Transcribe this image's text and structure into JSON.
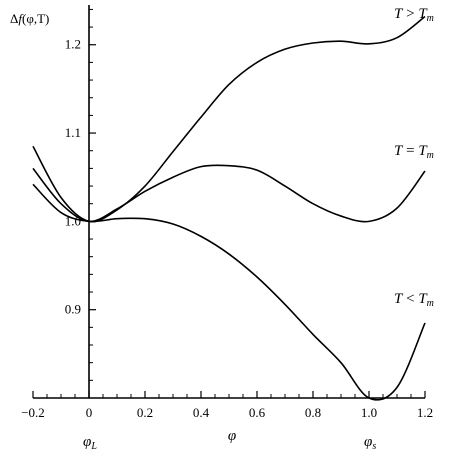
{
  "chart_data": {
    "type": "line",
    "ylabel_parts": {
      "delta": "Δ",
      "f": "f",
      "args": "(φ,T)"
    },
    "xlabel": "φ",
    "xlim": [
      -0.2,
      1.2
    ],
    "ylim": [
      0.8,
      1.245
    ],
    "x_ticks": [
      -0.2,
      0,
      0.2,
      0.4,
      0.6,
      0.8,
      1.0,
      1.2
    ],
    "x_tick_labels": [
      "−0.2",
      "0",
      "0.2",
      "0.4",
      "0.6",
      "0.8",
      "1.0",
      "1.2"
    ],
    "y_ticks": [
      0.9,
      1.0,
      1.1,
      1.2
    ],
    "y_tick_labels": [
      "0.9",
      "1.0",
      "1.1",
      "1.2"
    ],
    "special_labels": [
      {
        "x": 0,
        "base": "φ",
        "sub": "L"
      },
      {
        "x": 1.0,
        "base": "φ",
        "sub": "s"
      }
    ],
    "grid": false,
    "series": [
      {
        "label": {
          "lhs": "T",
          "op": ">",
          "rhs": "T",
          "sub": "m"
        },
        "x": [
          -0.2,
          -0.1,
          0,
          0.1,
          0.2,
          0.3,
          0.4,
          0.5,
          0.6,
          0.7,
          0.8,
          0.9,
          1.0,
          1.1,
          1.2
        ],
        "y": [
          1.085,
          1.027,
          1.0,
          1.013,
          1.04,
          1.079,
          1.118,
          1.155,
          1.18,
          1.195,
          1.202,
          1.204,
          1.201,
          1.208,
          1.232
        ]
      },
      {
        "label": {
          "lhs": "T",
          "op": "=",
          "rhs": "T",
          "sub": "m"
        },
        "x": [
          -0.2,
          -0.1,
          0,
          0.1,
          0.2,
          0.3,
          0.4,
          0.5,
          0.6,
          0.7,
          0.8,
          0.9,
          1.0,
          1.1,
          1.2
        ],
        "y": [
          1.06,
          1.02,
          1.0,
          1.014,
          1.034,
          1.05,
          1.062,
          1.063,
          1.058,
          1.04,
          1.02,
          1.006,
          1.0,
          1.015,
          1.057
        ]
      },
      {
        "label": {
          "lhs": "T",
          "op": "<",
          "rhs": "T",
          "sub": "m"
        },
        "x": [
          -0.2,
          -0.1,
          0,
          0.1,
          0.2,
          0.3,
          0.4,
          0.5,
          0.6,
          0.7,
          0.8,
          0.9,
          1.0,
          1.1,
          1.2
        ],
        "y": [
          1.042,
          1.01,
          1.0,
          1.003,
          1.003,
          0.997,
          0.983,
          0.963,
          0.937,
          0.906,
          0.872,
          0.84,
          0.8,
          0.812,
          0.885
        ]
      }
    ]
  }
}
